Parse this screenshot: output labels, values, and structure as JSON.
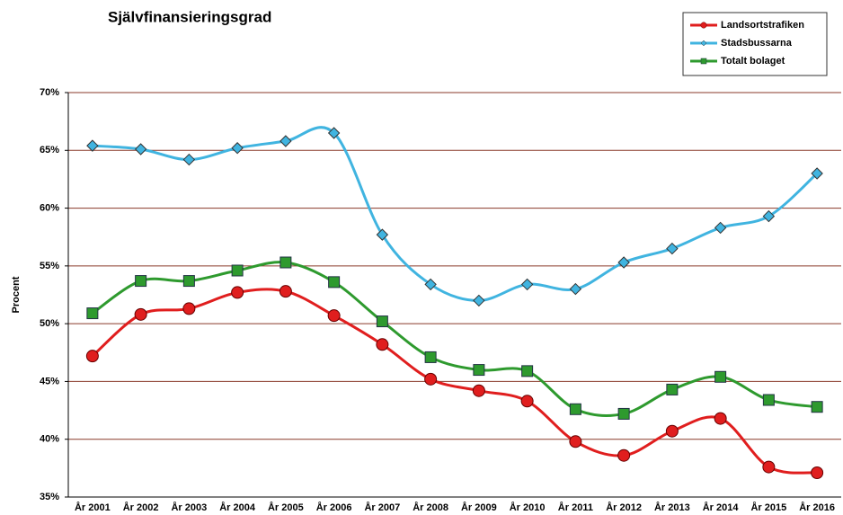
{
  "chart_data": {
    "type": "line",
    "title": "Självfinansieringsgrad",
    "y_label": "Procent",
    "categories": [
      "År 2001",
      "År 2002",
      "År 2003",
      "År 2004",
      "År 2005",
      "År 2006",
      "År 2007",
      "År 2008",
      "År 2009",
      "År 2010",
      "År 2011",
      "År 2012",
      "År 2013",
      "År 2014",
      "År 2015",
      "År 2016"
    ],
    "series": [
      {
        "name": "Landsortstrafiken",
        "color": "#e01e1e",
        "marker": "circle",
        "values": [
          47.2,
          50.8,
          51.3,
          52.7,
          52.8,
          50.7,
          48.2,
          45.2,
          44.2,
          43.3,
          39.8,
          38.6,
          40.7,
          41.8,
          37.6,
          37.1
        ]
      },
      {
        "name": "Stadsbussarna",
        "color": "#40b4e0",
        "marker": "diamond",
        "values": [
          65.4,
          65.1,
          64.2,
          65.2,
          65.8,
          66.5,
          57.7,
          53.4,
          52.0,
          53.4,
          53.0,
          55.3,
          56.5,
          58.3,
          59.3,
          63.0
        ]
      },
      {
        "name": "Totalt bolaget",
        "color": "#2e9a2e",
        "marker": "square",
        "values": [
          50.9,
          53.7,
          53.7,
          54.6,
          55.3,
          53.6,
          50.2,
          47.1,
          46.0,
          45.9,
          42.6,
          42.2,
          44.3,
          45.4,
          43.4,
          42.8
        ]
      }
    ],
    "ylim": [
      35,
      70
    ],
    "yticks": [
      {
        "value": 35,
        "label": "35%"
      },
      {
        "value": 40,
        "label": "40%"
      },
      {
        "value": 45,
        "label": "45%"
      },
      {
        "value": 50,
        "label": "50%"
      },
      {
        "value": 55,
        "label": "55%"
      },
      {
        "value": 60,
        "label": "60%"
      },
      {
        "value": 65,
        "label": "65%"
      },
      {
        "value": 70,
        "label": "70%"
      }
    ],
    "grid": true,
    "legend": "top-right"
  }
}
